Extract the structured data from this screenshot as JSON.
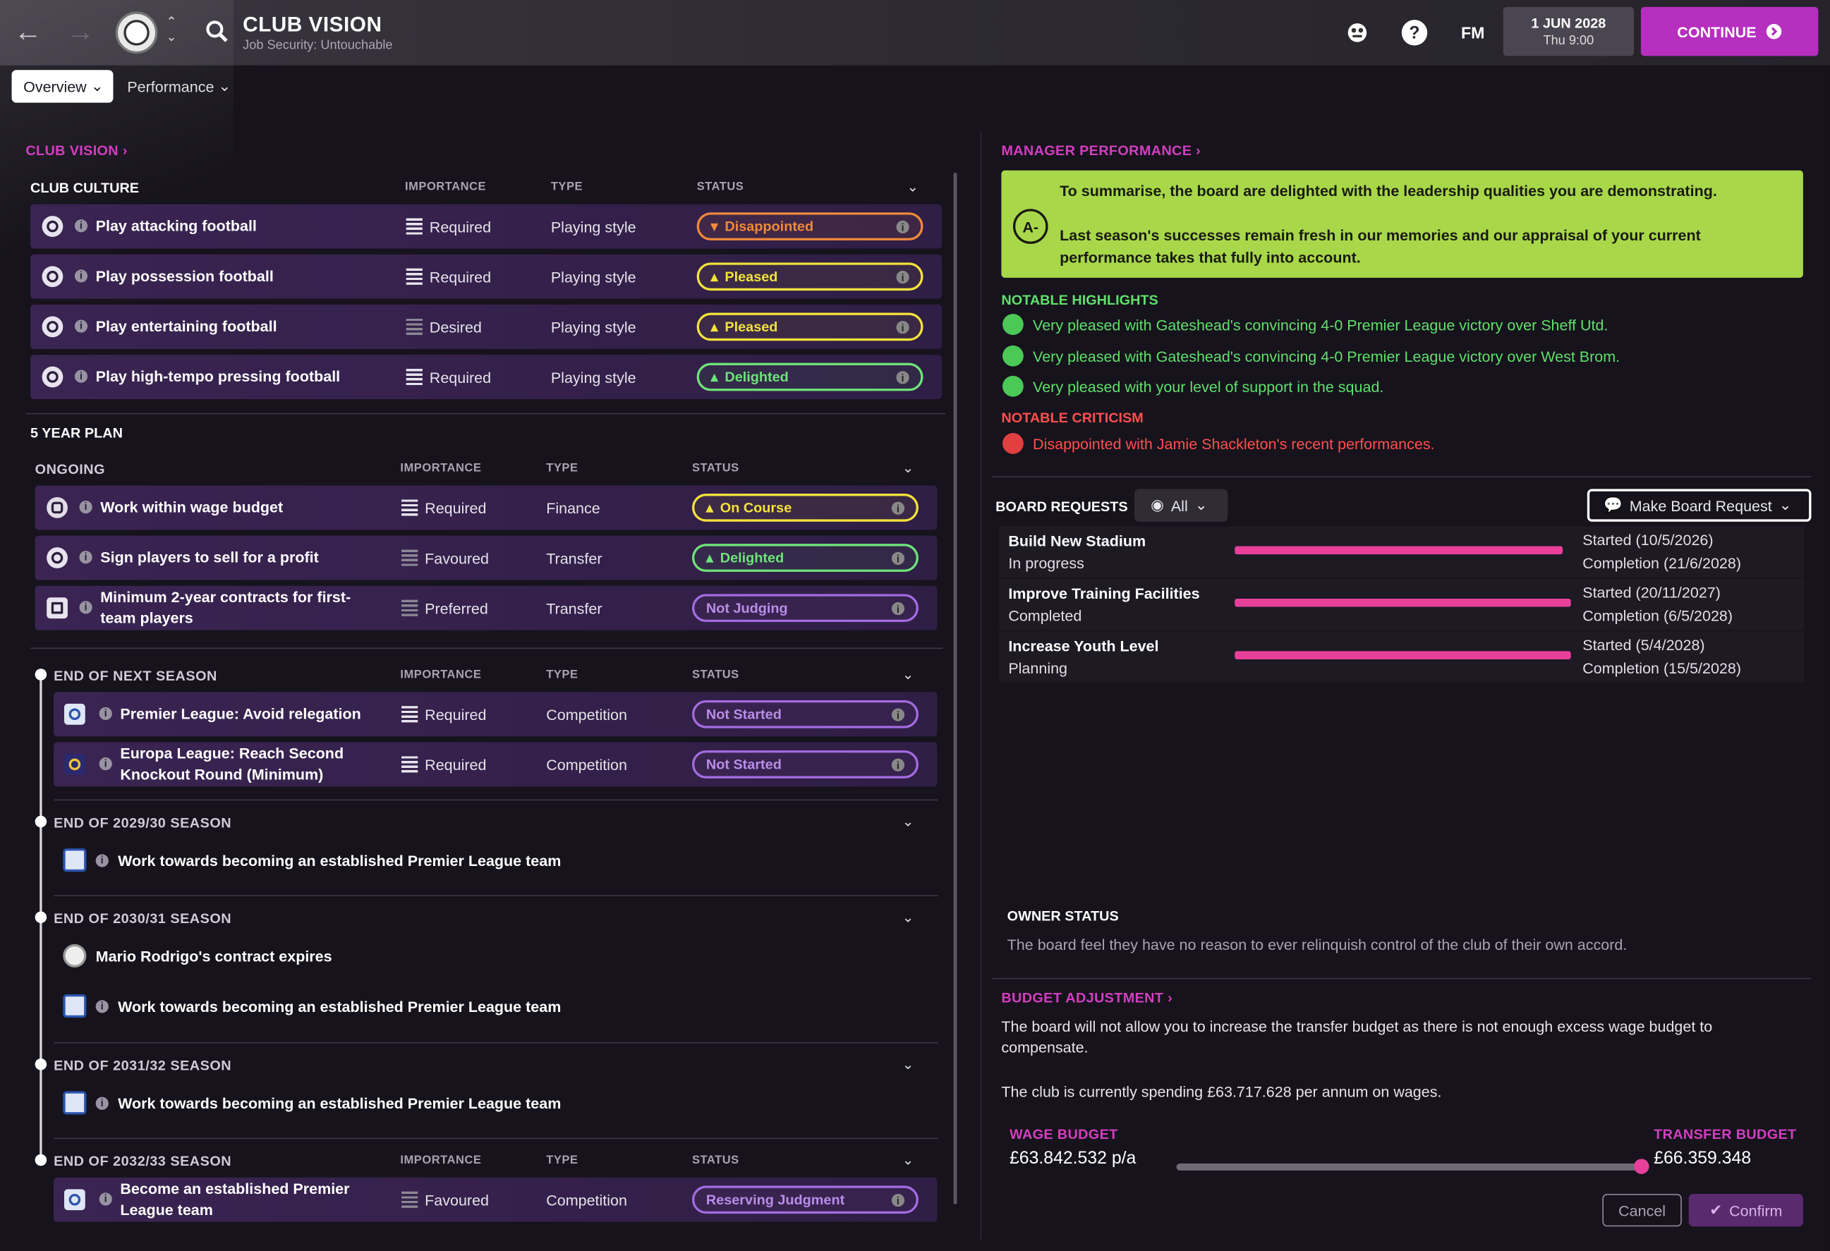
{
  "header": {
    "title": "CLUB VISION",
    "subtitle": "Job Security: Untouchable",
    "fm_label": "FM",
    "date": "1 JUN 2028",
    "time": "Thu 9:00",
    "continue_label": "CONTINUE",
    "help_label": "?"
  },
  "tabs": [
    {
      "label": "Overview",
      "active": true
    },
    {
      "label": "Performance",
      "active": false
    }
  ],
  "club_vision": {
    "link": "CLUB VISION",
    "culture": {
      "header": "CLUB CULTURE",
      "col_importance": "IMPORTANCE",
      "col_type": "TYPE",
      "col_status": "STATUS",
      "rows": [
        {
          "name": "Play attacking football",
          "importance": "Required",
          "type": "Playing style",
          "status": "Disappointed"
        },
        {
          "name": "Play possession football",
          "importance": "Required",
          "type": "Playing style",
          "status": "Pleased"
        },
        {
          "name": "Play entertaining football",
          "importance": "Desired",
          "type": "Playing style",
          "status": "Pleased"
        },
        {
          "name": "Play high-tempo pressing football",
          "importance": "Required",
          "type": "Playing style",
          "status": "Delighted"
        }
      ]
    },
    "five_year": {
      "header": "5 YEAR PLAN",
      "ongoing": "ONGOING",
      "col_importance": "IMPORTANCE",
      "col_type": "TYPE",
      "col_status": "STATUS",
      "rows": [
        {
          "name": "Work within wage budget",
          "importance": "Required",
          "type": "Finance",
          "status": "On Course"
        },
        {
          "name": "Sign players to sell for a profit",
          "importance": "Favoured",
          "type": "Transfer",
          "status": "Delighted"
        },
        {
          "name": "Minimum 2-year contracts for first-team players",
          "importance": "Preferred",
          "type": "Transfer",
          "status": "Not Judging"
        }
      ]
    },
    "next_season": {
      "header": "END OF NEXT SEASON",
      "col_importance": "IMPORTANCE",
      "col_type": "TYPE",
      "col_status": "STATUS",
      "rows": [
        {
          "name": "Premier League: Avoid relegation",
          "importance": "Required",
          "type": "Competition",
          "status": "Not Started"
        },
        {
          "name": "Europa League: Reach Second Knockout Round (Minimum)",
          "importance": "Required",
          "type": "Competition",
          "status": "Not Started"
        }
      ]
    },
    "season_2930": {
      "header": "END OF 2029/30 SEASON",
      "item": "Work towards becoming an established Premier League team"
    },
    "season_3031": {
      "header": "END OF 2030/31 SEASON",
      "item1": "Mario Rodrigo's contract expires",
      "item2": "Work towards becoming an established Premier League team"
    },
    "season_3132": {
      "header": "END OF 2031/32 SEASON",
      "item": "Work towards becoming an established Premier League team"
    },
    "season_3233": {
      "header": "END OF 2032/33 SEASON",
      "col_importance": "IMPORTANCE",
      "col_type": "TYPE",
      "col_status": "STATUS",
      "row": {
        "name": "Become an established Premier League team",
        "importance": "Favoured",
        "type": "Competition",
        "status": "Reserving Judgment"
      }
    }
  },
  "manager_performance": {
    "link": "MANAGER PERFORMANCE",
    "grade": "A-",
    "summary1": "To summarise, the board are delighted with the leadership qualities you are demonstrating.",
    "summary2": "Last season's successes remain fresh in our memories and our appraisal of your current performance takes that fully into account.",
    "highlights_header": "NOTABLE HIGHLIGHTS",
    "highlights": [
      "Very pleased with Gateshead's convincing 4-0 Premier League victory over Sheff Utd.",
      "Very pleased with Gateshead's convincing 4-0 Premier League victory over West Brom.",
      "Very pleased with your level of support in the squad."
    ],
    "criticism_header": "NOTABLE CRITICISM",
    "criticism": [
      "Disappointed with Jamie Shackleton's recent performances."
    ]
  },
  "board_requests": {
    "header": "BOARD REQUESTS",
    "filter": "All",
    "make_request": "Make Board Request",
    "items": [
      {
        "name": "Build New Stadium",
        "state": "In progress",
        "progress": 0.96,
        "started": "Started (10/5/2026)",
        "completion": "Completion (21/6/2028)"
      },
      {
        "name": "Improve Training Facilities",
        "state": "Completed",
        "progress": 1.0,
        "started": "Started (20/11/2027)",
        "completion": "Completion (6/5/2028)"
      },
      {
        "name": "Increase Youth Level",
        "state": "Planning",
        "progress": 1.0,
        "started": "Started (5/4/2028)",
        "completion": "Completion (15/5/2028)"
      }
    ]
  },
  "owner_status": {
    "header": "OWNER STATUS",
    "text": "The board feel they have no reason to ever relinquish control of the club of their own accord."
  },
  "budget": {
    "link": "BUDGET ADJUSTMENT",
    "text1": "The board will not allow you to increase the transfer budget as there is not enough excess wage budget to compensate.",
    "text2": "The club is currently spending £63.717.628 per annum on wages.",
    "wage_label": "WAGE BUDGET",
    "wage_value": "£63.842.532 p/a",
    "transfer_label": "TRANSFER BUDGET",
    "transfer_value": "£66.359.348",
    "slider_position": 0.99,
    "cancel": "Cancel",
    "confirm": "Confirm"
  },
  "colors": {
    "accent": "#b62fbf",
    "link": "#d33fc0",
    "summary_bg": "#a8d84a",
    "positive": "#5fe06a",
    "negative": "#ff4f4f",
    "progress": "#e8409a"
  }
}
